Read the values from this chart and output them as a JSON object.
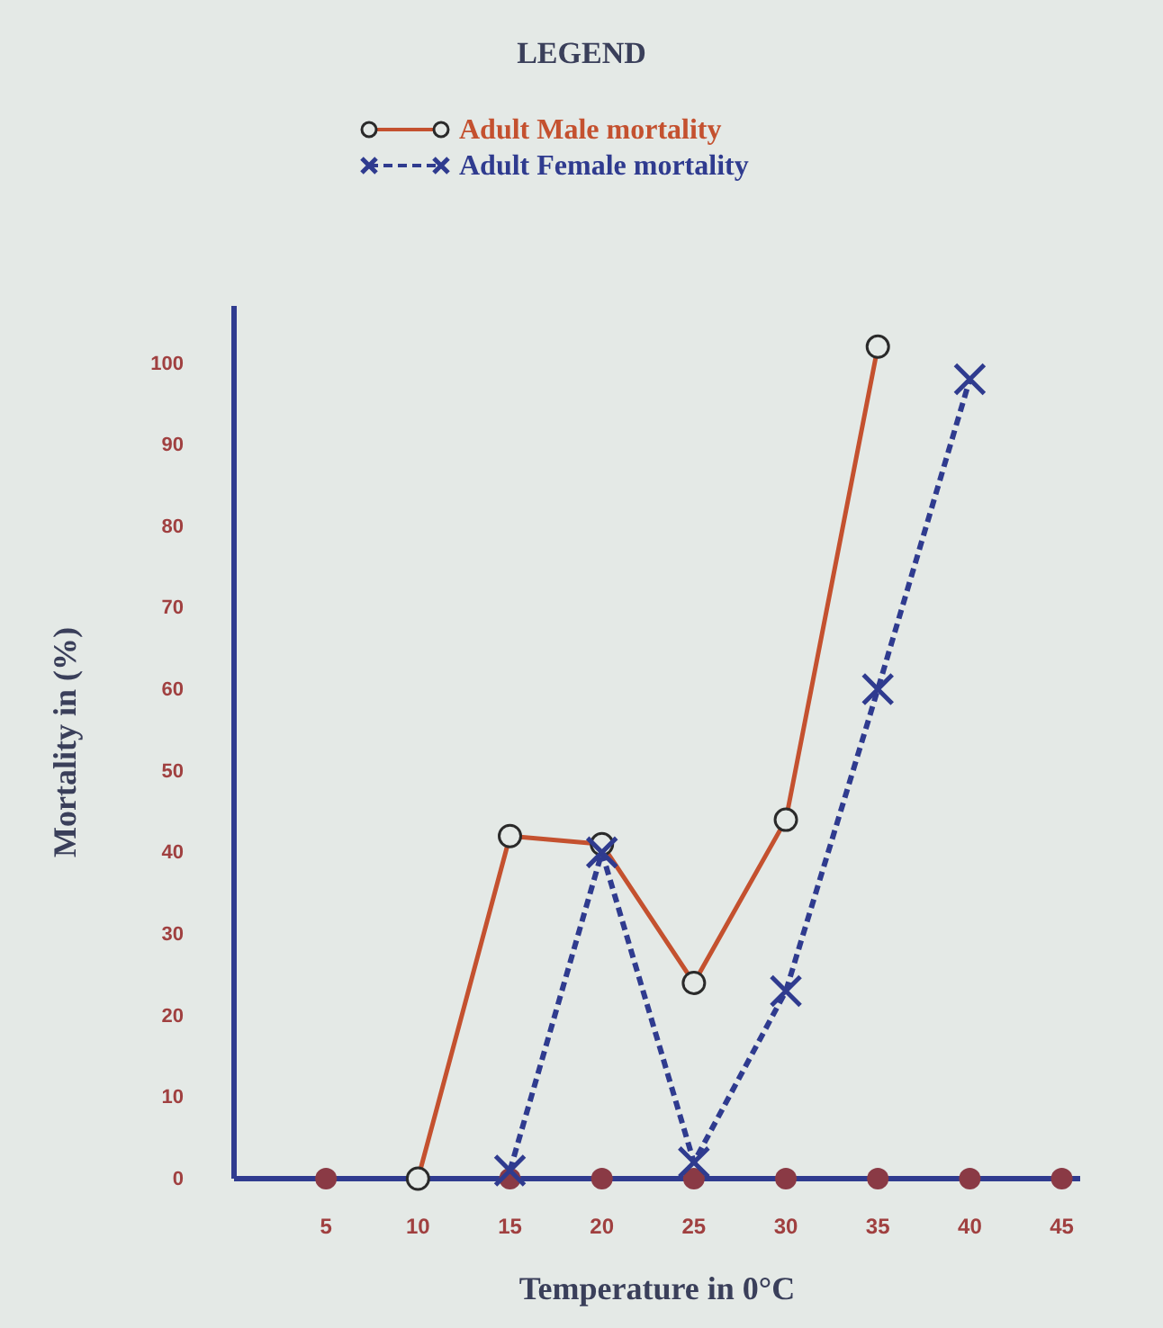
{
  "chart_data": {
    "type": "line",
    "legend_title": "LEGEND",
    "xlabel": "Temperature in 0°C",
    "ylabel": "Mortality in (%)",
    "xlim": [
      0,
      46
    ],
    "xticks": [
      5,
      10,
      15,
      20,
      25,
      30,
      35,
      40,
      45
    ],
    "ylim": [
      0,
      107
    ],
    "yticks": [
      0,
      10,
      20,
      30,
      40,
      50,
      60,
      70,
      80,
      90,
      100
    ],
    "legend": "top",
    "grid": false,
    "series": [
      {
        "name": "Adult Male mortality",
        "color": "#c4512f",
        "marker": "circle",
        "line_style": "solid",
        "x": [
          10,
          15,
          20,
          25,
          30,
          35
        ],
        "values": [
          0,
          42,
          41,
          24,
          44,
          102
        ]
      },
      {
        "name": "Adult Female mortality",
        "color": "#2f3b8f",
        "marker": "cross",
        "line_style": "dashed",
        "x": [
          15,
          20,
          25,
          30,
          35,
          40
        ],
        "values": [
          1,
          40,
          2,
          23,
          60,
          98
        ]
      }
    ]
  }
}
